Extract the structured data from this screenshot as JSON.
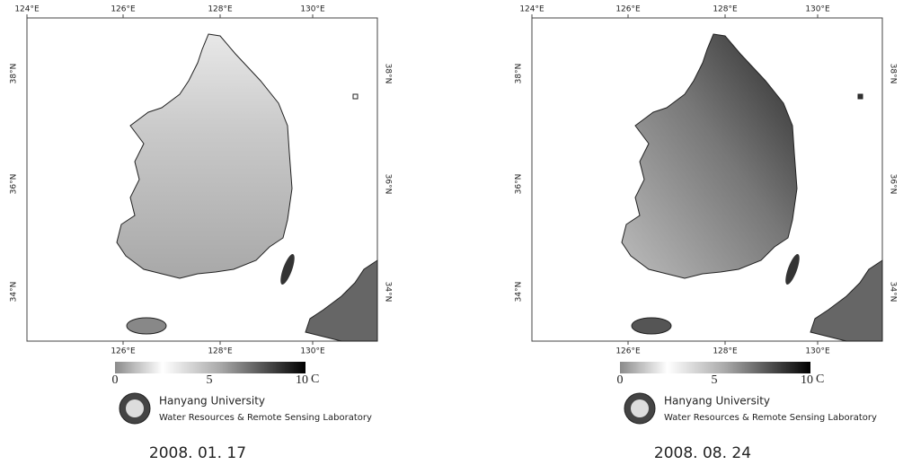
{
  "panels": [
    {
      "top_axis": [
        "124°E",
        "126°E",
        "128°E",
        "130°E"
      ],
      "bottom_axis": [
        "126°E",
        "128°E",
        "130°E"
      ],
      "left_axis": [
        "38°N",
        "36°N",
        "34°N"
      ],
      "right_axis": [
        "38°N",
        "36°N",
        "34°N"
      ],
      "colorbar": {
        "ticks": [
          0,
          5,
          10
        ],
        "unit": "C"
      },
      "logo": {
        "university": "Hanyang University",
        "laboratory": "Water Resources & Remote Sensing Laboratory"
      },
      "date": "2008. 01. 17"
    },
    {
      "top_axis": [
        "124°E",
        "126°E",
        "128°E",
        "130°E"
      ],
      "bottom_axis": [
        "126°E",
        "128°E",
        "130°E"
      ],
      "left_axis": [
        "38°N",
        "36°N",
        "34°N"
      ],
      "right_axis": [
        "38°N",
        "36°N",
        "34°N"
      ],
      "colorbar": {
        "ticks": [
          0,
          5,
          10
        ],
        "unit": "C"
      },
      "logo": {
        "university": "Hanyang University",
        "laboratory": "Water Resources & Remote Sensing Laboratory"
      },
      "date": "2008. 08. 24"
    }
  ]
}
